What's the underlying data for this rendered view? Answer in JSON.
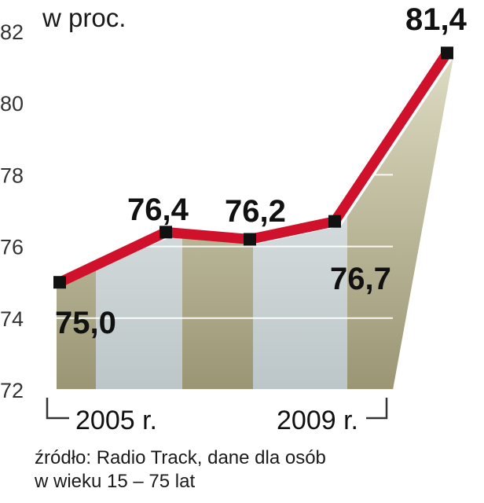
{
  "unit_label": "w proc.",
  "source": {
    "line1": "źródło: Radio Track, dane dla osób",
    "line2": "w wieku 15 – 75 lat"
  },
  "colors": {
    "line": "#d0112b",
    "marker": "#111111",
    "band_olive": "#a3a07e",
    "band_gray": "#c9d2d4",
    "text": "#1a1a1a"
  },
  "chart_data": {
    "type": "area",
    "x": [
      2005,
      2006,
      2007,
      2008,
      2009
    ],
    "values": [
      75.0,
      76.4,
      76.2,
      76.7,
      81.4
    ],
    "data_labels": [
      "75,0",
      "76,4",
      "76,2",
      "76,7",
      "81,4"
    ],
    "x_tick_labels": [
      "2005 r.",
      "2009 r."
    ],
    "y_ticks": [
      72,
      74,
      76,
      78,
      80,
      82
    ],
    "ylim": [
      72,
      82
    ],
    "grid": true,
    "title": "",
    "xlabel": "",
    "ylabel": ""
  }
}
